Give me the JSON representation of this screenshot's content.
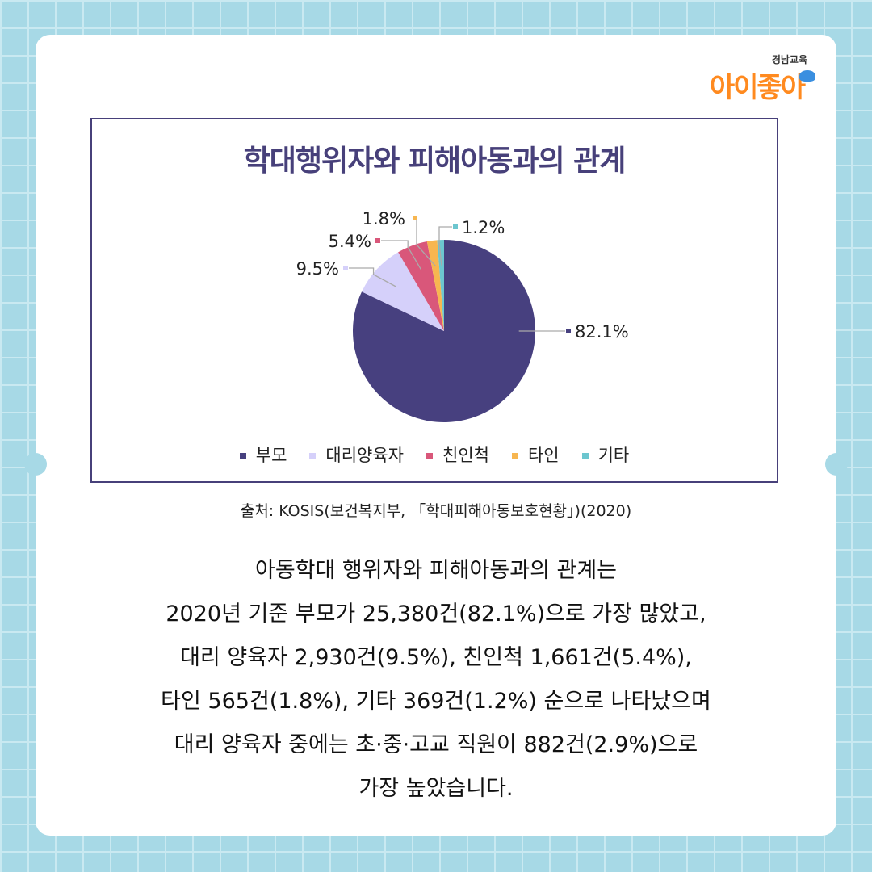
{
  "logo": {
    "small": "경남교육",
    "main": "아이좋아"
  },
  "source": "출처: KOSIS(보건복지부, 「학대피해아동보호현황」)(2020)",
  "body_lines": [
    "아동학대 행위자와 피해아동과의 관계는",
    "2020년 기준 부모가 25,380건(82.1%)으로 가장 많았고,",
    "대리 양육자 2,930건(9.5%), 친인척 1,661건(5.4%),",
    "타인 565건(1.8%), 기타 369건(1.2%) 순으로 나타났으며",
    "대리 양육자 중에는 초·중·고교 직원이 882건(2.9%)으로",
    "가장 높았습니다."
  ],
  "chart_data": {
    "type": "pie",
    "title": "학대행위자와 피해아동과의 관계",
    "categories": [
      "부모",
      "대리양육자",
      "친인척",
      "타인",
      "기타"
    ],
    "values": [
      82.1,
      9.5,
      5.4,
      1.8,
      1.2
    ],
    "labels": [
      "82.1%",
      "9.5%",
      "5.4%",
      "1.8%",
      "1.2%"
    ],
    "colors": [
      "#47407f",
      "#d5d0fa",
      "#d9577a",
      "#f7b650",
      "#6cc6cf"
    ],
    "legend_position": "bottom"
  }
}
